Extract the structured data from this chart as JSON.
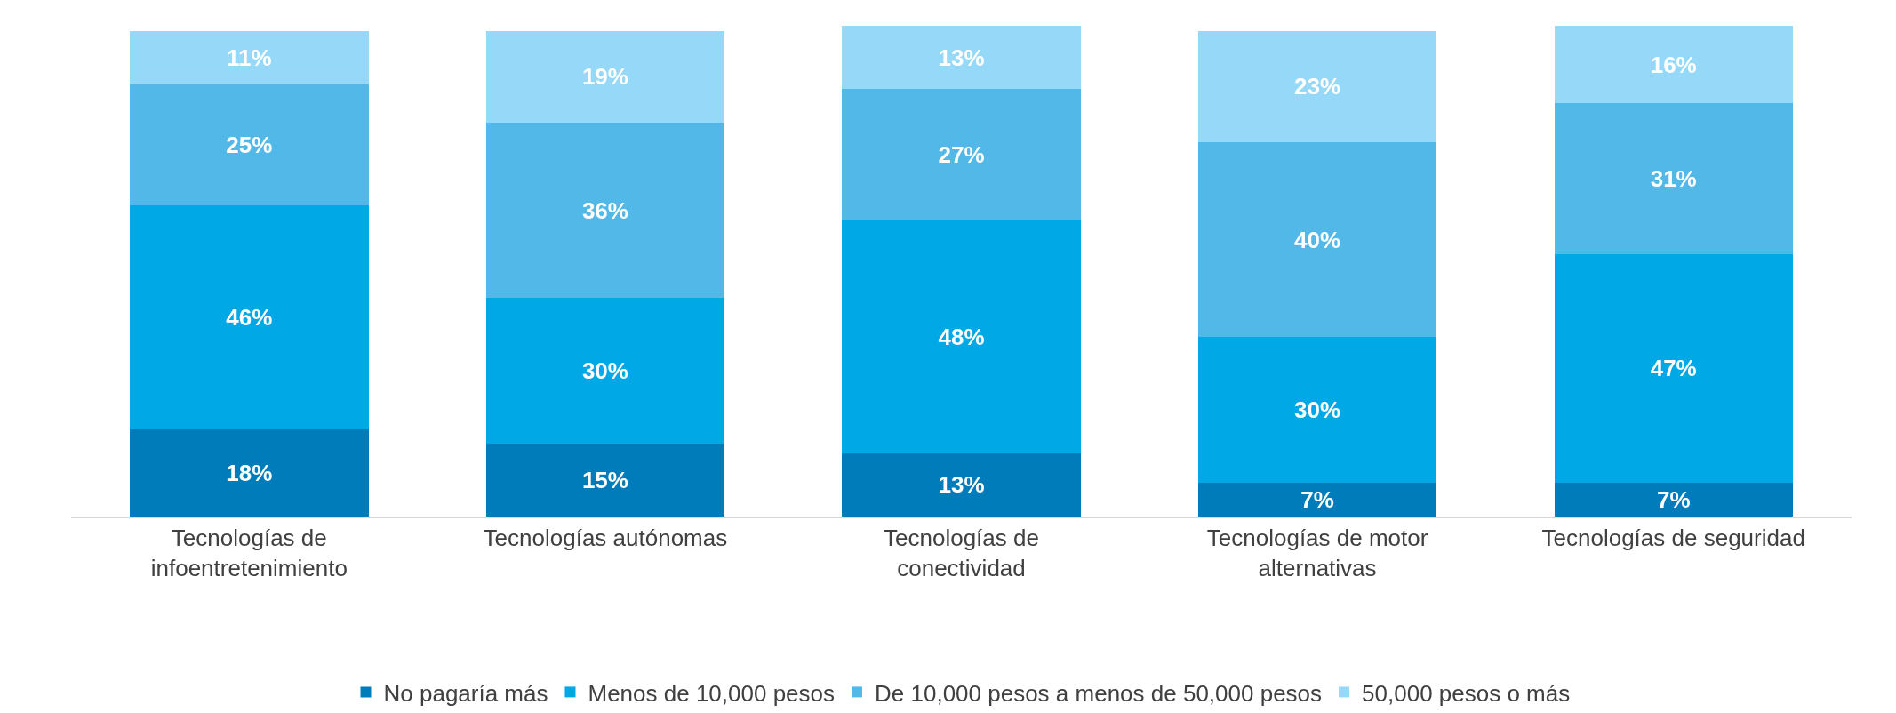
{
  "chart_data": {
    "type": "bar",
    "stacked": true,
    "legend": "bottom",
    "categories": [
      "Tecnologías de infoentretenimiento",
      "Tecnologías autónomas",
      "Tecnologías de conectividad",
      "Tecnologías de motor alternativas",
      "Tecnologías de seguridad"
    ],
    "series": [
      {
        "name": "No pagaría más",
        "color": "#007cba",
        "values": [
          18,
          15,
          13,
          7,
          7
        ],
        "value_labels": [
          "18%",
          "15%",
          "13%",
          "7%",
          "7%"
        ]
      },
      {
        "name": "Menos de 10,000 pesos",
        "color": "#00a8e6",
        "values": [
          46,
          30,
          48,
          30,
          47
        ],
        "value_labels": [
          "46%",
          "30%",
          "48%",
          "30%",
          "47%"
        ]
      },
      {
        "name": "De 10,000 pesos a menos de 50,000 pesos",
        "color": "#52b8e8",
        "values": [
          25,
          36,
          27,
          40,
          31
        ],
        "value_labels": [
          "25%",
          "36%",
          "27%",
          "40%",
          "31%"
        ]
      },
      {
        "name": "50,000 pesos o más",
        "color": "#95d8f7",
        "values": [
          11,
          19,
          13,
          23,
          16
        ],
        "value_labels": [
          "11%",
          "19%",
          "13%",
          "23%",
          "16%"
        ]
      }
    ]
  }
}
